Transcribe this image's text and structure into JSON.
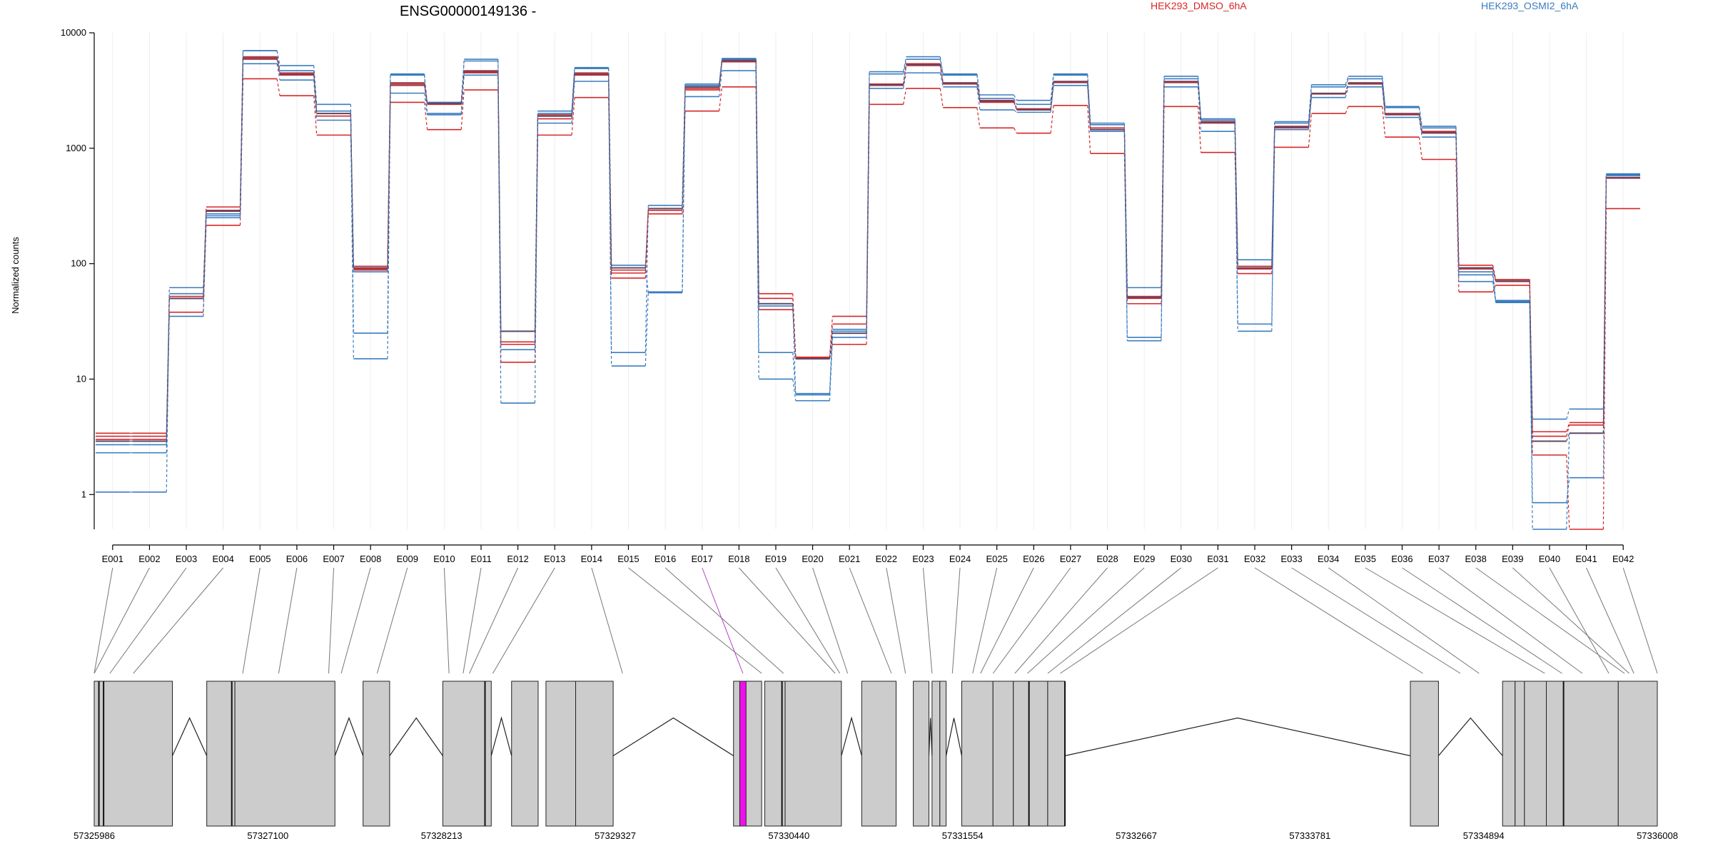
{
  "chart_data": {
    "type": "line",
    "title": "ENSG00000149136 -",
    "ylabel": "Normalized counts",
    "yscale": "log",
    "ylim": [
      0.5,
      10000
    ],
    "yticks": [
      1,
      10,
      100,
      1000,
      10000
    ],
    "ytick_labels": [
      "1",
      "10",
      "100",
      "1000",
      "10000"
    ],
    "categories": [
      "E001",
      "E002",
      "E003",
      "E004",
      "E005",
      "E006",
      "E007",
      "E008",
      "E009",
      "E010",
      "E011",
      "E012",
      "E013",
      "E014",
      "E015",
      "E016",
      "E017",
      "E018",
      "E019",
      "E020",
      "E021",
      "E022",
      "E023",
      "E024",
      "E025",
      "E026",
      "E027",
      "E028",
      "E029",
      "E030",
      "E031",
      "E032",
      "E033",
      "E034",
      "E035",
      "E036",
      "E037",
      "E038",
      "E039",
      "E040",
      "E041",
      "E042"
    ],
    "highlight_exon": "E017",
    "legend_placement": "top-right",
    "colors": {
      "dmso": "#d62728",
      "osmi": "#3a7dbf",
      "mean": "#5b4a6a",
      "highlight": "#ee11ee",
      "exon_fill": "#cccccc"
    },
    "series": [
      {
        "name": "HEK293_DMSO_6hA",
        "group": "dmso",
        "values": [
          3.4,
          3.4,
          52,
          310,
          6200,
          4500,
          2000,
          95,
          3700,
          2450,
          4700,
          21,
          1950,
          4500,
          88,
          300,
          3300,
          5800,
          55,
          15.5,
          35,
          3600,
          5400,
          3700,
          2600,
          2200,
          3800,
          1500,
          52,
          3800,
          1700,
          95,
          1550,
          3000,
          3700,
          2000,
          1400,
          97,
          73,
          3.5,
          4.2,
          560
        ]
      },
      {
        "name": "HEK293_DMSO_6hA",
        "group": "dmso",
        "values": [
          3.2,
          3.2,
          50,
          290,
          5900,
          4300,
          1900,
          90,
          3500,
          2400,
          4500,
          20,
          1800,
          4300,
          83,
          290,
          3200,
          5600,
          50,
          15,
          30,
          3500,
          5200,
          3600,
          2500,
          2150,
          3700,
          1450,
          50,
          3700,
          1650,
          90,
          1500,
          2950,
          3600,
          1950,
          1350,
          90,
          70,
          3.2,
          4.0,
          550
        ]
      },
      {
        "name": "HEK293_DMSO_6hA",
        "group": "dmso",
        "values": [
          3.0,
          3.0,
          38,
          215,
          4000,
          2850,
          1300,
          88,
          2500,
          1450,
          3200,
          14,
          1300,
          2750,
          75,
          270,
          2100,
          3400,
          40,
          15.2,
          20,
          2400,
          3300,
          2250,
          1500,
          1350,
          2350,
          900,
          45,
          2300,
          920,
          82,
          1020,
          2000,
          2300,
          1250,
          800,
          57,
          65,
          2.2,
          0.5,
          300
        ]
      },
      {
        "name": "HEK293_OSMI2_6hA",
        "group": "osmi",
        "values": [
          1.05,
          1.05,
          62,
          270,
          7000,
          5200,
          2400,
          25,
          4400,
          2000,
          5900,
          26,
          2100,
          5000,
          17,
          320,
          3600,
          6000,
          17,
          7.5,
          27,
          4600,
          6200,
          4400,
          2900,
          2600,
          4400,
          1650,
          62,
          4200,
          1800,
          108,
          1700,
          3550,
          4200,
          2300,
          1550,
          70,
          47,
          4.5,
          5.5,
          600
        ]
      },
      {
        "name": "HEK293_OSMI2_6hA",
        "group": "osmi",
        "values": [
          2.3,
          2.3,
          55,
          250,
          5400,
          3900,
          1750,
          15,
          3000,
          1950,
          4300,
          18,
          1650,
          3800,
          13,
          57,
          2800,
          4700,
          10,
          6.5,
          23,
          3300,
          4500,
          3400,
          2150,
          2050,
          3500,
          1400,
          23,
          3400,
          1400,
          26,
          1450,
          2750,
          3400,
          1850,
          1250,
          80,
          46,
          0.85,
          1.4,
          580
        ]
      },
      {
        "name": "HEK293_OSMI2_6hA",
        "group": "osmi",
        "values": [
          2.7,
          2.7,
          35,
          260,
          7000,
          4700,
          2100,
          85,
          4300,
          2500,
          5700,
          6.2,
          2000,
          4900,
          97,
          56,
          3500,
          5900,
          43,
          7.3,
          26,
          4400,
          5900,
          4300,
          2700,
          2400,
          4300,
          1600,
          21.5,
          4000,
          1750,
          30,
          1650,
          3400,
          4000,
          2250,
          1500,
          85,
          48,
          0.5,
          3.4,
          590
        ]
      },
      {
        "name": "",
        "group": "mean",
        "values": [
          2.9,
          2.9,
          50,
          285,
          6050,
          4400,
          2000,
          92,
          3600,
          2450,
          4600,
          26,
          1900,
          4400,
          92,
          300,
          3400,
          5700,
          45,
          15,
          25,
          3550,
          5300,
          3650,
          2550,
          2150,
          3750,
          1450,
          51,
          3750,
          1680,
          92,
          1530,
          2980,
          3650,
          1980,
          1370,
          92,
          71,
          2.9,
          3.4,
          555
        ]
      }
    ],
    "gene_model": {
      "coord_ticks": [
        "57325986",
        "57327100",
        "57328213",
        "57329327",
        "57330440",
        "57331554",
        "57332667",
        "57333781",
        "57334894",
        "57336008"
      ]
    },
    "legend": {
      "dmso_label": "HEK293_DMSO_6hA",
      "osmi_label": "HEK293_OSMI2_6hA"
    }
  }
}
